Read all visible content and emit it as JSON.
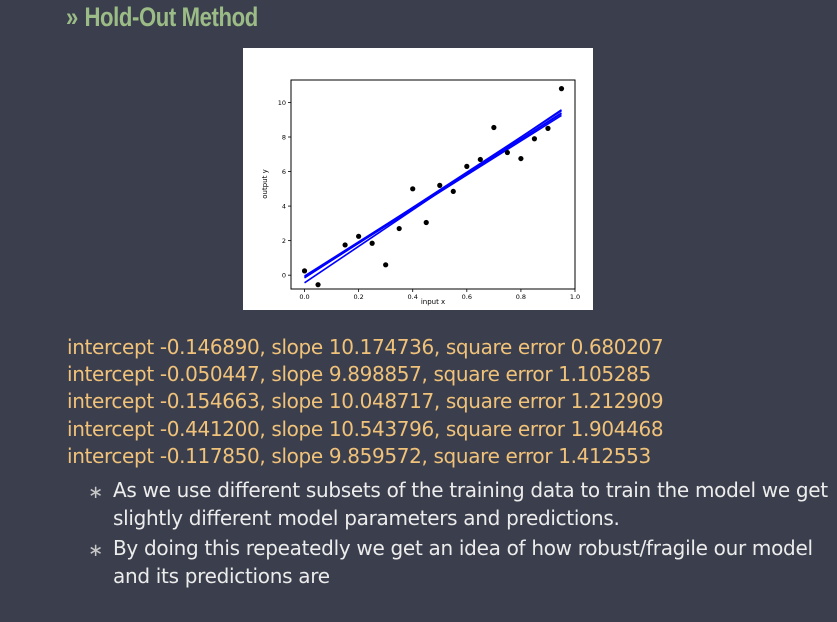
{
  "slide": {
    "title_marker": "»",
    "title": "Hold-Out Method"
  },
  "chart_data": {
    "type": "scatter",
    "title": "",
    "xlabel": "input x",
    "ylabel": "output y",
    "xlim": [
      -0.05,
      1.0
    ],
    "ylim": [
      -0.8,
      11.3
    ],
    "xticks": [
      0.0,
      0.2,
      0.4,
      0.6,
      0.8,
      1.0
    ],
    "xtick_labels": [
      "0.0",
      "0.2",
      "0.4",
      "0.6",
      "0.8",
      "1.0"
    ],
    "yticks": [
      0,
      2,
      4,
      6,
      8,
      10
    ],
    "ytick_labels": [
      "0",
      "2",
      "4",
      "6",
      "8",
      "10"
    ],
    "grid": false,
    "point_color": "#000000",
    "line_color": "#0000ff",
    "x": [
      0.0,
      0.05,
      0.15,
      0.2,
      0.25,
      0.3,
      0.35,
      0.4,
      0.45,
      0.5,
      0.55,
      0.6,
      0.65,
      0.7,
      0.75,
      0.8,
      0.85,
      0.9,
      0.95
    ],
    "y": [
      0.25,
      -0.55,
      1.75,
      2.25,
      1.85,
      0.6,
      2.7,
      5.0,
      3.05,
      5.2,
      4.85,
      6.3,
      6.7,
      8.55,
      7.1,
      6.75,
      7.9,
      8.5,
      10.8
    ],
    "fits": [
      {
        "intercept": -0.14689,
        "slope": 10.174736
      },
      {
        "intercept": -0.050447,
        "slope": 9.898857
      },
      {
        "intercept": -0.154663,
        "slope": 10.048717
      },
      {
        "intercept": -0.4412,
        "slope": 10.543796
      },
      {
        "intercept": -0.11785,
        "slope": 9.859572
      }
    ]
  },
  "results": [
    "intercept -0.146890, slope 10.174736, square error 0.680207",
    "intercept -0.050447, slope 9.898857, square error 1.105285",
    "intercept -0.154663, slope 10.048717, square error 1.212909",
    "intercept -0.441200, slope 10.543796, square error 1.904468",
    "intercept -0.117850, slope 9.859572, square error 1.412553"
  ],
  "bullets": {
    "icon": "∗",
    "items": [
      "As we use different subsets of the training data to train the model we get slightly different model parameters and predictions.",
      "By doing this repeatedly we get an idea of how robust/fragile our model and its predictions are"
    ]
  }
}
